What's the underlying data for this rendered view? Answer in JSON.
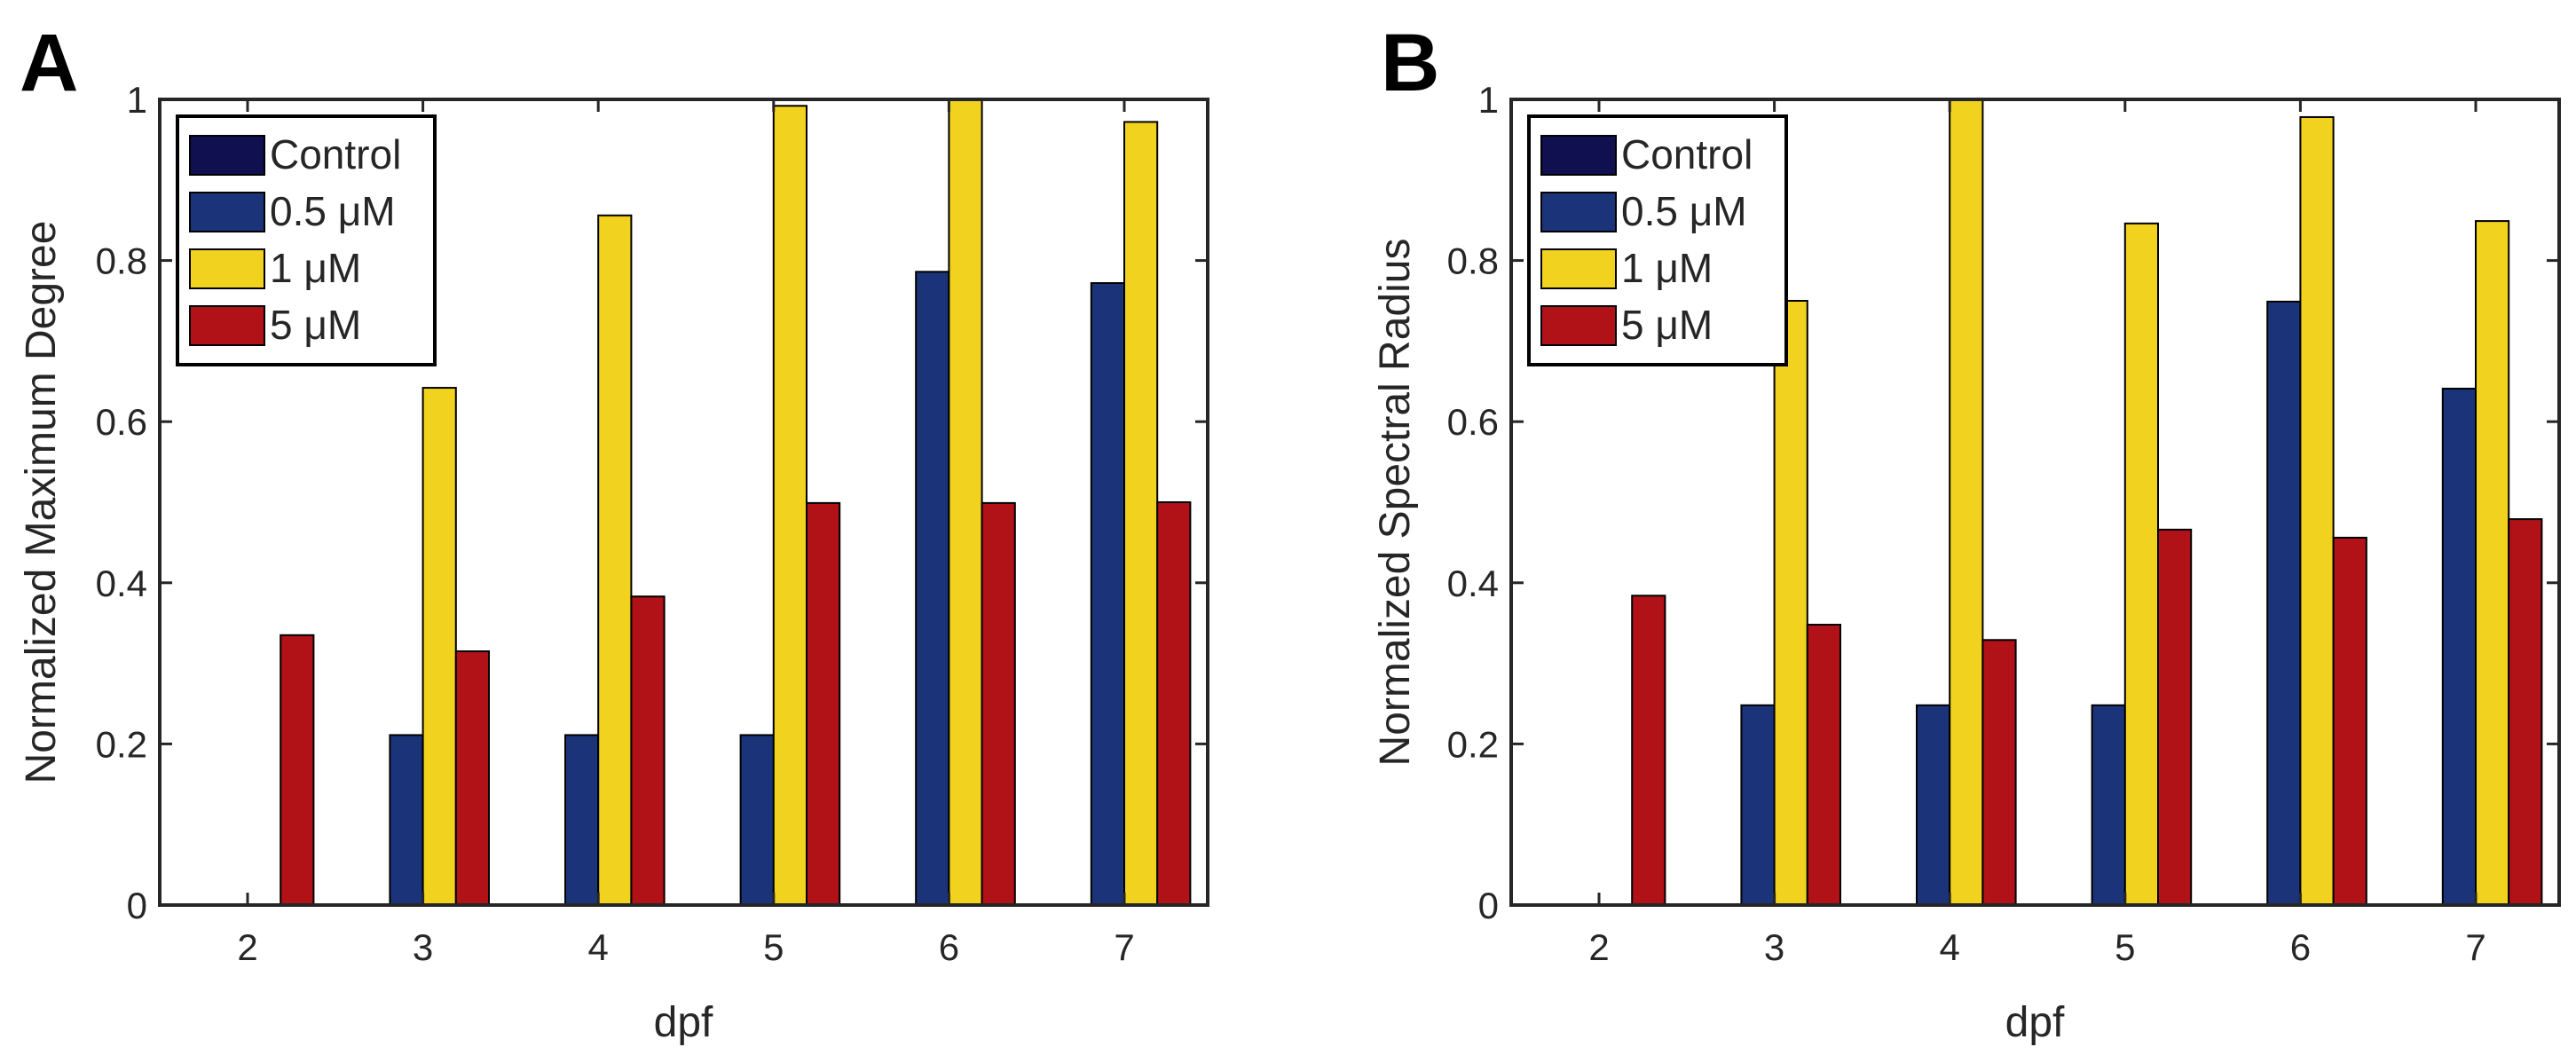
{
  "figure_title": "",
  "chart_data": [
    {
      "type": "bar",
      "panel_label": "A",
      "categories": [
        "2",
        "3",
        "4",
        "5",
        "6",
        "7"
      ],
      "series": [
        {
          "name": "Control",
          "color": "#101050",
          "values": [
            0,
            0,
            0,
            0,
            0,
            0
          ]
        },
        {
          "name": "0.5 μM",
          "color": "#1B3479",
          "values": [
            0,
            0.211,
            0.211,
            0.211,
            0.786,
            0.772
          ]
        },
        {
          "name": "1 μM",
          "color": "#F1D21E",
          "values": [
            0,
            0.642,
            0.856,
            0.992,
            1.0,
            0.972
          ]
        },
        {
          "name": "5 μM",
          "color": "#B01218",
          "values": [
            0.335,
            0.315,
            0.383,
            0.499,
            0.499,
            0.5
          ]
        }
      ],
      "yticks": [
        "0",
        "0.2",
        "0.4",
        "0.6",
        "0.8",
        "1"
      ],
      "ylim": [
        0,
        1
      ],
      "xlabel": "dpf",
      "ylabel": "Normalized Maximum Degree",
      "legend_placement": "top-left"
    },
    {
      "type": "bar",
      "panel_label": "B",
      "categories": [
        "2",
        "3",
        "4",
        "5",
        "6",
        "7"
      ],
      "series": [
        {
          "name": "Control",
          "color": "#101050",
          "values": [
            0,
            0,
            0,
            0,
            0,
            0
          ]
        },
        {
          "name": "0.5 μM",
          "color": "#1B3479",
          "values": [
            0,
            0.248,
            0.248,
            0.248,
            0.749,
            0.641
          ]
        },
        {
          "name": "1 μM",
          "color": "#F1D21E",
          "values": [
            0,
            0.75,
            1.0,
            0.846,
            0.978,
            0.849
          ]
        },
        {
          "name": "5 μM",
          "color": "#B01218",
          "values": [
            0.384,
            0.348,
            0.329,
            0.466,
            0.456,
            0.479
          ]
        }
      ],
      "yticks": [
        "0",
        "0.2",
        "0.4",
        "0.6",
        "0.8",
        "1"
      ],
      "ylim": [
        0,
        1
      ],
      "xlabel": "dpf",
      "ylabel": "Normalized Spectral Radius",
      "legend_placement": "top-left"
    }
  ]
}
